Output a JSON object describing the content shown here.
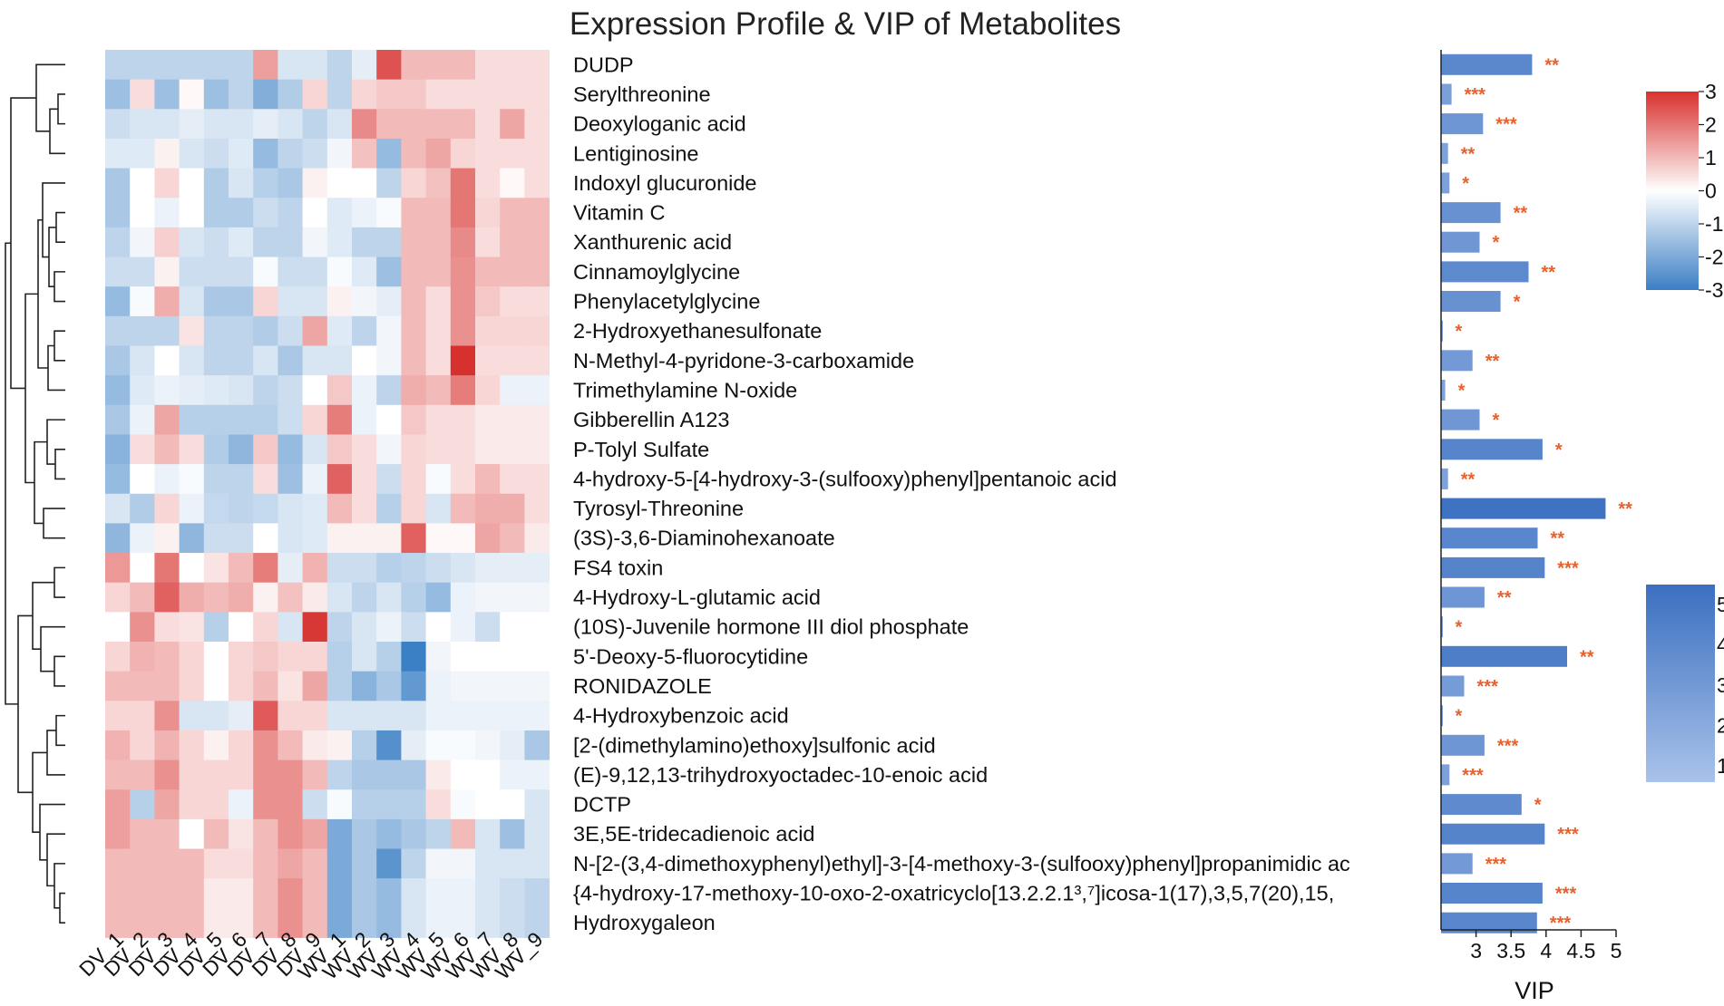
{
  "chart_data": {
    "type": "heatmap",
    "title": "Expression Profile & VIP of Metabolites",
    "columns": [
      "DV_1",
      "DV_2",
      "DV_3",
      "DV_4",
      "DV_5",
      "DV_6",
      "DV_7",
      "DV_8",
      "DV_9",
      "WV_1",
      "WV_2",
      "WV_3",
      "WV_4",
      "WV_5",
      "WV_6",
      "WV_7",
      "WV_8",
      "WV_9"
    ],
    "rows": [
      "DUDP",
      "Serylthreonine",
      "Deoxyloganic acid",
      "Lentiginosine",
      "Indoxyl glucuronide",
      "Vitamin C",
      "Xanthurenic acid",
      "Cinnamoylglycine",
      "Phenylacetylglycine",
      "2-Hydroxyethanesulfonate",
      "N-Methyl-4-pyridone-3-carboxamide",
      "Trimethylamine N-oxide",
      "Gibberellin A123",
      "P-Tolyl Sulfate",
      "4-hydroxy-5-[4-hydroxy-3-(sulfooxy)phenyl]pentanoic acid",
      "Tyrosyl-Threonine",
      "(3S)-3,6-Diaminohexanoate",
      "FS4 toxin",
      "4-Hydroxy-L-glutamic acid",
      "(10S)-Juvenile hormone III diol phosphate",
      "5'-Deoxy-5-fluorocytidine",
      "RONIDAZOLE",
      "4-Hydroxybenzoic acid",
      "[2-(dimethylamino)ethoxy]sulfonic acid",
      "(E)-9,12,13-trihydroxyoctadec-10-enoic acid",
      "DCTP",
      "3E,5E-tridecadienoic acid",
      "N-[2-(3,4-dimethoxyphenyl)ethyl]-3-[4-methoxy-3-(sulfooxy)phenyl]propanimidic ac",
      "{4-hydroxy-17-methoxy-10-oxo-2-oxatricyclo[13.2.2.1³,⁷]icosa-1(17),3,5,7(20),15,",
      "Hydroxygaleon"
    ],
    "values": [
      [
        -1.0,
        -1.0,
        -1.0,
        -1.0,
        -1.0,
        -1.0,
        1.4,
        -0.6,
        -0.6,
        -1.0,
        -0.4,
        2.5,
        1.0,
        1.0,
        1.0,
        0.5,
        0.5,
        0.5
      ],
      [
        -1.5,
        0.5,
        -1.5,
        0.1,
        -1.5,
        -1.0,
        -1.9,
        -1.2,
        0.6,
        -1.0,
        0.6,
        0.8,
        0.8,
        0.5,
        0.5,
        0.5,
        0.5,
        0.5
      ],
      [
        -0.8,
        -0.6,
        -0.6,
        -0.4,
        -0.6,
        -0.6,
        -0.4,
        -0.6,
        -1.0,
        -0.6,
        1.7,
        1.0,
        1.0,
        1.0,
        1.0,
        0.5,
        1.3,
        0.5
      ],
      [
        -0.5,
        -0.5,
        0.2,
        -0.6,
        -0.8,
        -0.5,
        -1.6,
        -1.0,
        -0.8,
        -0.2,
        0.9,
        -1.6,
        1.0,
        1.3,
        0.6,
        0.5,
        0.5,
        0.5
      ],
      [
        -1.3,
        0.0,
        0.6,
        0.0,
        -1.2,
        -0.6,
        -1.1,
        -1.3,
        0.2,
        0.0,
        0.0,
        -1.0,
        0.6,
        0.9,
        2.0,
        0.5,
        0.1,
        0.5
      ],
      [
        -1.3,
        0.0,
        -0.3,
        0.0,
        -1.2,
        -1.2,
        -0.8,
        -1.0,
        0.0,
        -0.5,
        -0.3,
        -0.1,
        1.0,
        1.0,
        2.0,
        0.6,
        1.0,
        1.0
      ],
      [
        -1.0,
        -0.2,
        0.7,
        -0.6,
        -0.8,
        -0.5,
        -1.0,
        -1.0,
        -0.2,
        -0.5,
        -1.0,
        -1.0,
        1.0,
        1.0,
        1.7,
        0.5,
        1.0,
        1.0
      ],
      [
        -0.8,
        -0.8,
        0.2,
        -0.8,
        -0.8,
        -0.8,
        -0.1,
        -0.8,
        -0.8,
        -0.1,
        -0.5,
        -1.5,
        1.0,
        1.0,
        1.6,
        1.0,
        1.0,
        1.0
      ],
      [
        -1.6,
        -0.1,
        1.2,
        -0.6,
        -1.3,
        -1.3,
        0.6,
        -0.6,
        -0.6,
        0.2,
        -0.2,
        -0.4,
        1.0,
        0.5,
        1.6,
        0.8,
        0.5,
        0.5
      ],
      [
        -1.0,
        -1.0,
        -1.0,
        0.4,
        -1.0,
        -1.0,
        -1.2,
        -0.8,
        1.3,
        -0.5,
        -1.0,
        -0.2,
        1.0,
        0.5,
        1.6,
        0.6,
        0.6,
        0.6
      ],
      [
        -1.3,
        -0.6,
        0.0,
        -0.6,
        -1.0,
        -1.0,
        -0.6,
        -1.3,
        -0.6,
        -0.6,
        0.0,
        -0.2,
        1.0,
        0.5,
        3.0,
        0.5,
        0.5,
        0.5
      ],
      [
        -1.6,
        -0.5,
        -0.3,
        -0.4,
        -0.5,
        -0.6,
        -1.0,
        -0.8,
        0.0,
        0.8,
        -0.3,
        -1.0,
        1.2,
        1.0,
        1.9,
        0.6,
        -0.3,
        -0.3
      ],
      [
        -1.3,
        -0.3,
        1.3,
        -1.1,
        -1.1,
        -1.1,
        -1.1,
        -0.8,
        0.6,
        1.9,
        -0.3,
        0.0,
        0.8,
        0.5,
        0.5,
        0.3,
        0.3,
        0.3
      ],
      [
        -1.8,
        0.5,
        1.0,
        0.5,
        -1.2,
        -1.7,
        0.8,
        -1.6,
        -0.6,
        0.8,
        0.5,
        -0.2,
        0.6,
        0.5,
        0.5,
        0.3,
        0.3,
        0.3
      ],
      [
        -1.6,
        0.0,
        -0.3,
        -0.1,
        -1.0,
        -1.0,
        0.5,
        -1.5,
        -0.3,
        2.3,
        0.5,
        -0.8,
        0.6,
        -0.1,
        0.5,
        1.0,
        0.5,
        0.5
      ],
      [
        -0.6,
        -1.2,
        0.6,
        -0.3,
        -0.9,
        -1.0,
        -0.9,
        -0.6,
        -0.5,
        1.0,
        0.5,
        -1.1,
        0.6,
        -0.6,
        1.0,
        1.2,
        1.2,
        0.5
      ],
      [
        -1.7,
        -0.3,
        0.2,
        -1.7,
        -0.8,
        -0.8,
        0.0,
        -0.6,
        -0.5,
        0.2,
        0.2,
        0.2,
        2.3,
        0.1,
        0.1,
        1.3,
        1.0,
        0.3
      ],
      [
        1.5,
        0.0,
        2.0,
        0.0,
        0.4,
        1.0,
        1.9,
        -0.4,
        1.1,
        -0.8,
        -0.8,
        -1.1,
        -1.0,
        -0.8,
        -0.6,
        -0.4,
        -0.4,
        -0.4
      ],
      [
        0.6,
        1.0,
        2.3,
        1.2,
        1.0,
        1.2,
        0.2,
        0.9,
        0.3,
        -0.6,
        -1.0,
        -0.6,
        -1.1,
        -1.6,
        -0.3,
        -0.2,
        -0.2,
        -0.2
      ],
      [
        0.0,
        1.6,
        0.5,
        0.4,
        -1.1,
        0.0,
        0.6,
        -0.6,
        2.9,
        -1.0,
        -0.6,
        -0.3,
        -0.8,
        0.0,
        -0.3,
        -0.8,
        0.0,
        0.0
      ],
      [
        0.6,
        1.1,
        1.0,
        0.6,
        0.0,
        0.6,
        0.8,
        0.6,
        0.6,
        -1.1,
        -0.6,
        -1.1,
        -3.0,
        -0.2,
        0.0,
        0.0,
        0.0,
        0.0
      ],
      [
        1.0,
        1.0,
        1.0,
        0.6,
        0.0,
        0.6,
        1.0,
        0.4,
        1.3,
        -1.1,
        -1.8,
        -1.3,
        -2.4,
        -0.3,
        -0.2,
        -0.2,
        -0.2,
        -0.2
      ],
      [
        0.6,
        0.6,
        1.6,
        -0.6,
        -0.6,
        -0.4,
        2.4,
        0.6,
        0.6,
        -0.6,
        -0.6,
        -0.6,
        -0.6,
        -0.3,
        -0.3,
        -0.3,
        -0.3,
        -0.3
      ],
      [
        1.1,
        0.6,
        1.1,
        0.6,
        0.2,
        0.6,
        1.6,
        1.0,
        0.3,
        0.2,
        -1.1,
        -2.6,
        -0.4,
        -0.1,
        -0.1,
        -0.2,
        -0.4,
        -1.3
      ],
      [
        1.0,
        1.0,
        1.6,
        0.6,
        0.6,
        0.6,
        1.6,
        1.6,
        1.0,
        -1.0,
        -1.3,
        -1.3,
        -1.3,
        0.3,
        0.0,
        0.0,
        -0.3,
        -0.3
      ],
      [
        1.4,
        -1.1,
        1.3,
        0.6,
        0.6,
        -0.3,
        1.6,
        1.6,
        -0.8,
        -0.1,
        -1.1,
        -1.1,
        -1.1,
        0.5,
        -0.1,
        0.0,
        0.0,
        -0.6
      ],
      [
        1.4,
        1.0,
        1.0,
        0.0,
        1.0,
        0.4,
        1.0,
        1.6,
        1.3,
        -2.0,
        -1.3,
        -1.6,
        -1.3,
        -1.0,
        1.0,
        -0.6,
        -1.5,
        -0.6
      ],
      [
        1.0,
        1.0,
        1.0,
        1.0,
        0.5,
        0.5,
        1.0,
        1.3,
        1.0,
        -2.0,
        -1.3,
        -2.5,
        -1.0,
        -0.2,
        -0.2,
        -0.6,
        -0.6,
        -0.6
      ],
      [
        1.0,
        1.0,
        1.0,
        1.0,
        0.3,
        0.3,
        1.0,
        1.6,
        1.0,
        -2.0,
        -1.3,
        -1.6,
        -0.6,
        -0.3,
        -0.3,
        -0.6,
        -0.8,
        -1.0
      ],
      [
        1.0,
        1.0,
        1.0,
        1.0,
        0.3,
        0.3,
        1.0,
        1.6,
        1.0,
        -2.0,
        -1.3,
        -1.6,
        -0.6,
        -0.3,
        -0.3,
        -0.6,
        -0.8,
        -1.0
      ]
    ],
    "color_scale": {
      "min": -3,
      "max": 3,
      "ticks": [
        3,
        2,
        1,
        0,
        -1,
        -2,
        -3
      ],
      "low_color": "#3b7fc4",
      "mid_color": "#ffffff",
      "high_color": "#d7312e"
    },
    "vip": {
      "type": "bar",
      "xlabel": "VIP",
      "xlim": [
        2.5,
        5
      ],
      "ticks": [
        3,
        3.5,
        4,
        4.5,
        5
      ],
      "values": [
        3.8,
        2.65,
        3.1,
        2.6,
        2.62,
        3.35,
        3.05,
        3.75,
        3.35,
        2.52,
        2.95,
        2.56,
        3.05,
        3.95,
        2.6,
        4.85,
        3.88,
        3.98,
        3.12,
        2.52,
        4.3,
        2.83,
        2.52,
        3.12,
        2.62,
        3.65,
        3.98,
        2.95,
        3.95,
        3.87
      ],
      "significance": [
        "**",
        "***",
        "***",
        "**",
        "*",
        "**",
        "*",
        "**",
        "*",
        "*",
        "**",
        "*",
        "*",
        "*",
        "**",
        "**",
        "**",
        "***",
        "**",
        "*",
        "**",
        "***",
        "*",
        "***",
        "***",
        "*",
        "***",
        "***",
        "***",
        "***"
      ],
      "color_scale": {
        "min": 1,
        "max": 5,
        "ticks": [
          5,
          4,
          3,
          2,
          1
        ],
        "low_color": "#a9c2ea",
        "high_color": "#3a6fc0"
      }
    },
    "dendrogram": "hierarchical clustering of rows (left side)"
  }
}
